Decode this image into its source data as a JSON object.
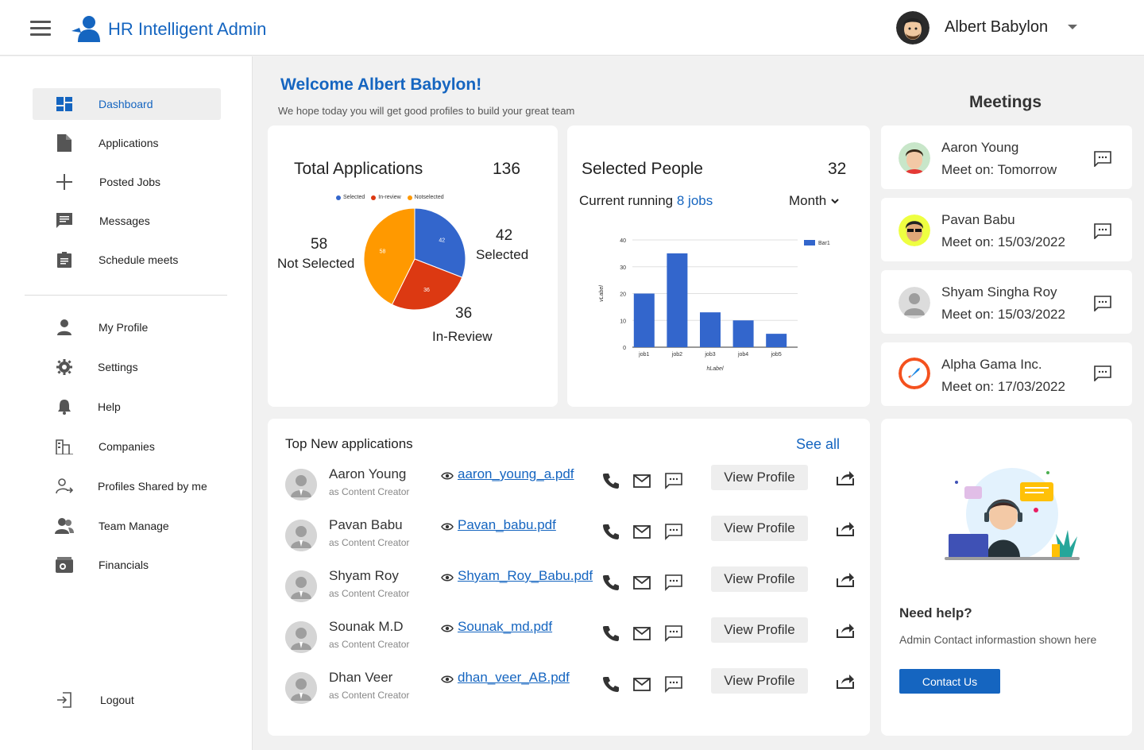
{
  "header": {
    "app_title": "HR Intelligent Admin",
    "user_name": "Albert Babylon"
  },
  "sidebar": {
    "primary": [
      {
        "label": "Dashboard",
        "icon": "dashboard-icon",
        "active": true
      },
      {
        "label": "Applications",
        "icon": "file-icon"
      },
      {
        "label": "Posted Jobs",
        "icon": "plus-icon"
      },
      {
        "label": "Messages",
        "icon": "message-icon"
      },
      {
        "label": "Schedule meets",
        "icon": "clipboard-icon"
      }
    ],
    "secondary": [
      {
        "label": "My Profile",
        "icon": "person-icon"
      },
      {
        "label": "Settings",
        "icon": "gear-icon"
      },
      {
        "label": "Help",
        "icon": "bell-icon"
      },
      {
        "label": "Companies",
        "icon": "building-icon"
      },
      {
        "label": "Profiles Shared by me",
        "icon": "person-share-icon"
      },
      {
        "label": "Team Manage",
        "icon": "team-icon"
      },
      {
        "label": "Financials",
        "icon": "wallet-icon"
      }
    ],
    "logout": "Logout"
  },
  "welcome": {
    "title": "Welcome Albert Babylon!",
    "subtitle": "We hope today you will get good profiles to build your great team"
  },
  "total_applications": {
    "title": "Total Applications",
    "count": "136",
    "legend": [
      "Selected",
      "In-review",
      "Notselected"
    ],
    "not_selected_num": "58",
    "not_selected_label": "Not Selected",
    "selected_num": "42",
    "selected_label": "Selected",
    "in_review_num": "36",
    "in_review_label": "In-Review"
  },
  "selected_people": {
    "title": "Selected People",
    "count": "32",
    "running_prefix": "Current running",
    "running_link": "8 jobs",
    "period": "Month"
  },
  "chart_data": [
    {
      "type": "pie",
      "title": "Total Applications",
      "categories": [
        "Selected",
        "In-review",
        "Notselected"
      ],
      "values": [
        42,
        36,
        58
      ],
      "colors": [
        "#3366cc",
        "#dc3912",
        "#ff9900"
      ]
    },
    {
      "type": "bar",
      "title": "",
      "categories": [
        "job1",
        "job2",
        "job3",
        "job4",
        "job5"
      ],
      "series": [
        {
          "name": "Bar1",
          "values": [
            20,
            35,
            13,
            10,
            5
          ]
        }
      ],
      "xlabel": "hLabel",
      "ylabel": "vLabel",
      "yticks": [
        0,
        10,
        20,
        30,
        40
      ],
      "ylim": [
        0,
        40
      ],
      "colors": [
        "#3366cc"
      ]
    }
  ],
  "meetings": {
    "title": "Meetings",
    "items": [
      {
        "name": "Aaron Young",
        "when": "Meet on: Tomorrow"
      },
      {
        "name": "Pavan Babu",
        "when": "Meet on: 15/03/2022"
      },
      {
        "name": "Shyam Singha Roy",
        "when": "Meet on: 15/03/2022"
      },
      {
        "name": "Alpha Gama Inc.",
        "when": "Meet on: 17/03/2022"
      }
    ]
  },
  "applications": {
    "title": "Top New applications",
    "see_all": "See all",
    "view_label": "View Profile",
    "rows": [
      {
        "name": "Aaron Young",
        "role": "as Content Creator",
        "file": "aaron_young_a.pdf"
      },
      {
        "name": "Pavan Babu",
        "role": "as Content Creator",
        "file": "Pavan_babu.pdf"
      },
      {
        "name": "Shyam Roy",
        "role": "as Content Creator",
        "file": "Shyam_Roy_Babu.pdf"
      },
      {
        "name": "Sounak M.D",
        "role": "as Content Creator",
        "file": "Sounak_md.pdf"
      },
      {
        "name": "Dhan Veer",
        "role": "as Content Creator",
        "file": "dhan_veer_AB.pdf"
      }
    ]
  },
  "help": {
    "title": "Need help?",
    "text": "Admin Contact informastion shown here",
    "button": "Contact Us"
  },
  "colors": {
    "accent": "#1565c0",
    "selected": "#3366cc",
    "in_review": "#dc3912",
    "not_selected": "#ff9900"
  }
}
